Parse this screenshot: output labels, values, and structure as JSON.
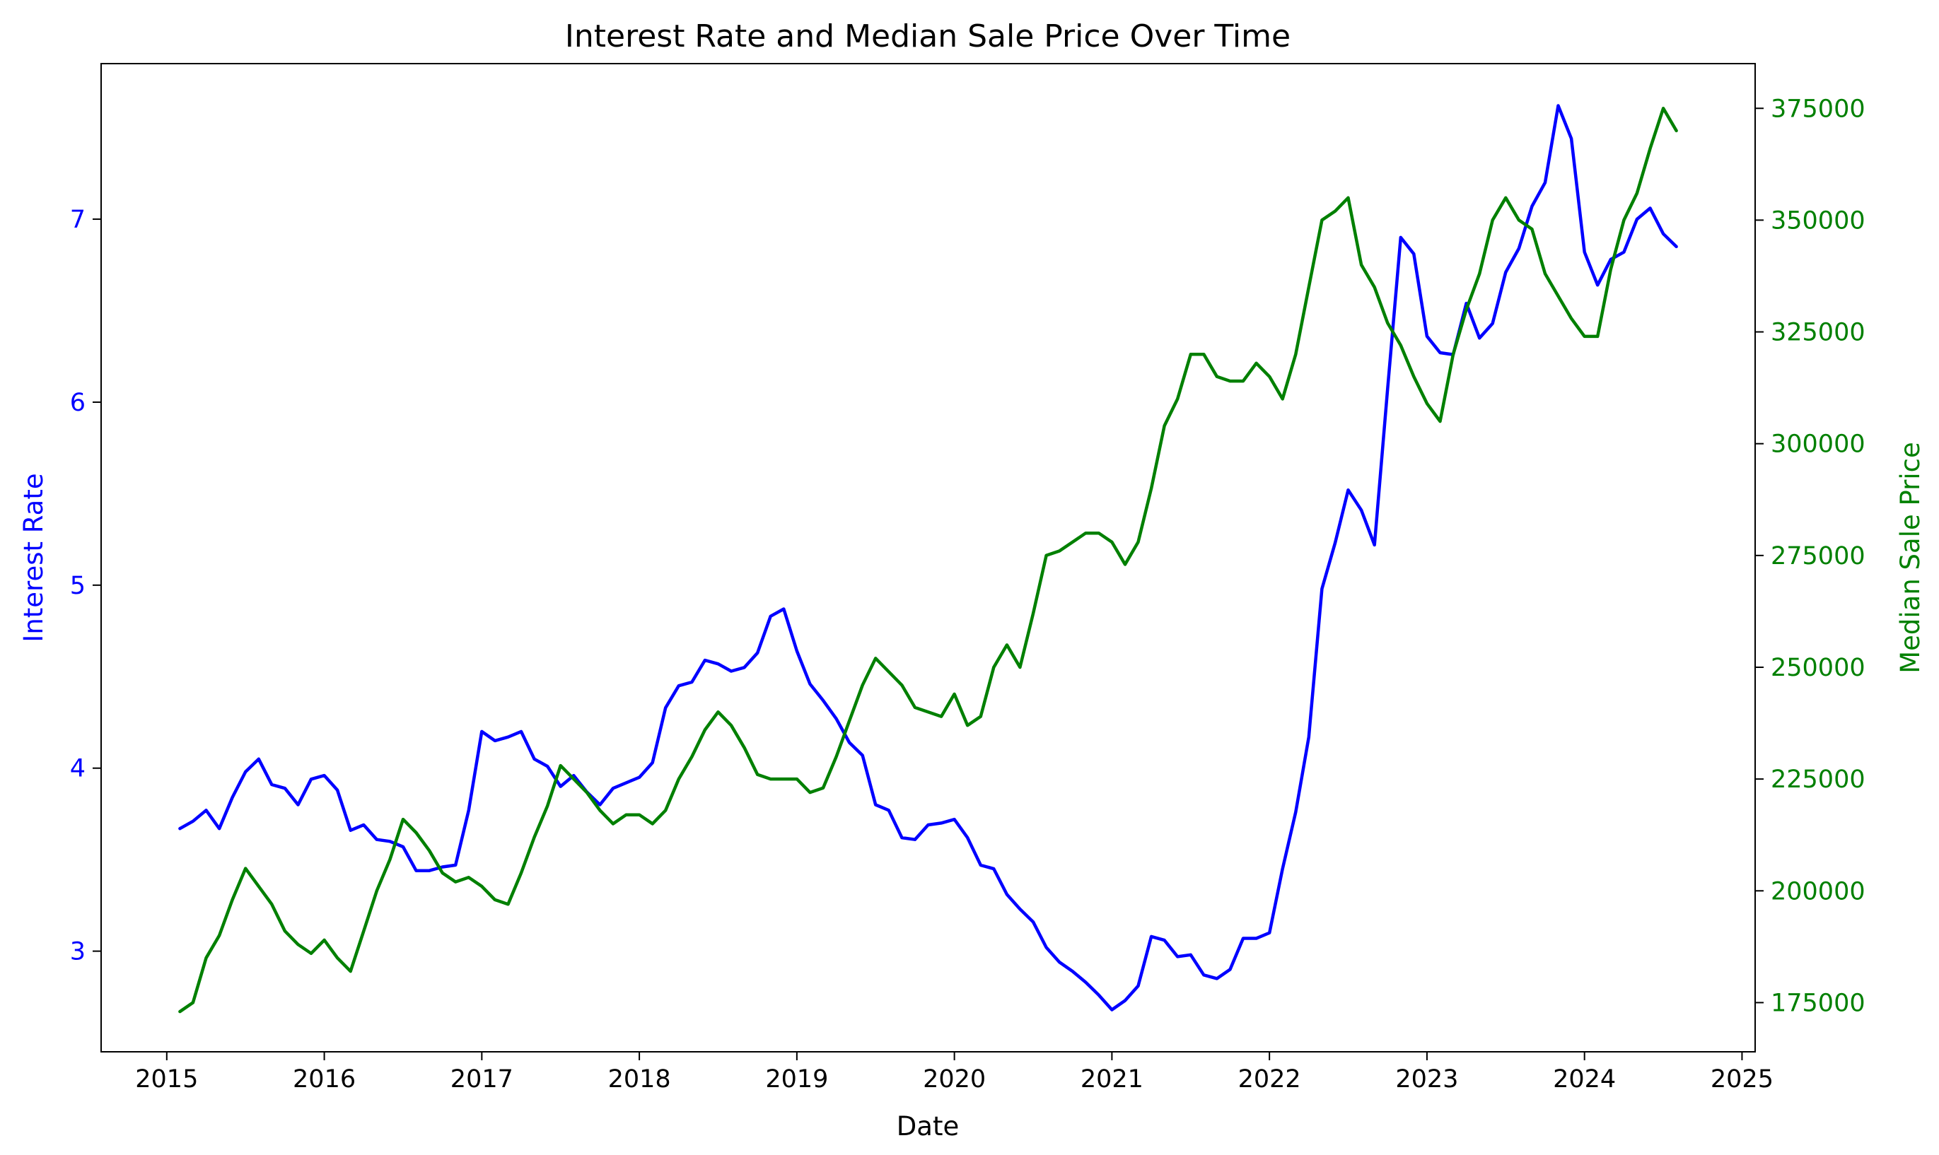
{
  "chart_data": {
    "type": "line",
    "title": "Interest Rate and Median Sale Price Over Time",
    "xlabel": "Date",
    "ylabel_left": "Interest Rate",
    "ylabel_right": "Median Sale Price",
    "x_ticks": [
      "2015",
      "2016",
      "2017",
      "2018",
      "2019",
      "2020",
      "2021",
      "2022",
      "2023",
      "2024",
      "2025"
    ],
    "y_left_ticks": [
      "3",
      "4",
      "5",
      "6",
      "7"
    ],
    "y_right_ticks": [
      "175000",
      "200000",
      "225000",
      "250000",
      "275000",
      "300000",
      "325000",
      "350000",
      "375000"
    ],
    "xlim": [
      "2014-08",
      "2025-02"
    ],
    "ylim_left": [
      2.45,
      7.85
    ],
    "ylim_right": [
      164000,
      385000
    ],
    "grid": false,
    "colors": {
      "left_series": "#0000ff",
      "right_series": "#008000"
    },
    "x": [
      "2015-02",
      "2015-03",
      "2015-04",
      "2015-05",
      "2015-06",
      "2015-07",
      "2015-08",
      "2015-09",
      "2015-10",
      "2015-11",
      "2015-12",
      "2016-01",
      "2016-02",
      "2016-03",
      "2016-04",
      "2016-05",
      "2016-06",
      "2016-07",
      "2016-08",
      "2016-09",
      "2016-10",
      "2016-11",
      "2016-12",
      "2017-01",
      "2017-02",
      "2017-03",
      "2017-04",
      "2017-05",
      "2017-06",
      "2017-07",
      "2017-08",
      "2017-09",
      "2017-10",
      "2017-11",
      "2017-12",
      "2018-01",
      "2018-02",
      "2018-03",
      "2018-04",
      "2018-05",
      "2018-06",
      "2018-07",
      "2018-08",
      "2018-09",
      "2018-10",
      "2018-11",
      "2018-12",
      "2019-01",
      "2019-02",
      "2019-03",
      "2019-04",
      "2019-05",
      "2019-06",
      "2019-07",
      "2019-08",
      "2019-09",
      "2019-10",
      "2019-11",
      "2019-12",
      "2020-01",
      "2020-02",
      "2020-03",
      "2020-04",
      "2020-05",
      "2020-06",
      "2020-07",
      "2020-08",
      "2020-09",
      "2020-10",
      "2020-11",
      "2020-12",
      "2021-01",
      "2021-02",
      "2021-03",
      "2021-04",
      "2021-05",
      "2021-06",
      "2021-07",
      "2021-08",
      "2021-09",
      "2021-10",
      "2021-11",
      "2021-12",
      "2022-01",
      "2022-02",
      "2022-03",
      "2022-04",
      "2022-05",
      "2022-06",
      "2022-07",
      "2022-08",
      "2022-09",
      "2022-10",
      "2022-11",
      "2022-12",
      "2023-01",
      "2023-02",
      "2023-03",
      "2023-04",
      "2023-05",
      "2023-06",
      "2023-07",
      "2023-08",
      "2023-09",
      "2023-10",
      "2023-11",
      "2023-12",
      "2024-01",
      "2024-02",
      "2024-03",
      "2024-04",
      "2024-05",
      "2024-06",
      "2024-07",
      "2024-08"
    ],
    "series": [
      {
        "axis": "left",
        "values": [
          3.67,
          3.71,
          3.77,
          3.67,
          3.84,
          3.98,
          4.05,
          3.91,
          3.89,
          3.8,
          3.94,
          3.96,
          3.88,
          3.66,
          3.69,
          3.61,
          3.6,
          3.57,
          3.44,
          3.44,
          3.46,
          3.47,
          3.77,
          4.2,
          4.15,
          4.17,
          4.2,
          4.05,
          4.01,
          3.9,
          3.96,
          3.87,
          3.8,
          3.89,
          3.92,
          3.95,
          4.03,
          4.33,
          4.45,
          4.47,
          4.59,
          4.57,
          4.53,
          4.55,
          4.63,
          4.83,
          4.87,
          4.64,
          4.46,
          4.37,
          4.27,
          4.14,
          4.07,
          3.8,
          3.77,
          3.62,
          3.61,
          3.69,
          3.7,
          3.72,
          3.62,
          3.47,
          3.45,
          3.31,
          3.23,
          3.16,
          3.02,
          2.94,
          2.89,
          2.83,
          2.76,
          2.68,
          2.73,
          2.81,
          3.08,
          3.06,
          2.97,
          2.98,
          2.87,
          2.85,
          2.9,
          3.07,
          3.07,
          3.1,
          3.45,
          3.76,
          4.17,
          4.98,
          5.23,
          5.52,
          5.41,
          5.22,
          6.07,
          6.9,
          6.81,
          6.36,
          6.27,
          6.26,
          6.54,
          6.35,
          6.43,
          6.71,
          6.84,
          7.07,
          7.2,
          7.62,
          7.44,
          6.82,
          6.64,
          6.78,
          6.82,
          7.0,
          7.06,
          6.92,
          6.85
        ]
      },
      {
        "axis": "right",
        "values": [
          173000,
          175000,
          185000,
          190000,
          198000,
          205000,
          201000,
          197000,
          191000,
          188000,
          186000,
          189000,
          185000,
          182000,
          191000,
          200000,
          207000,
          216000,
          213000,
          209000,
          204000,
          202000,
          203000,
          201000,
          198000,
          197000,
          204000,
          212000,
          219000,
          228000,
          225000,
          222000,
          218000,
          215000,
          217000,
          217000,
          215000,
          218000,
          225000,
          230000,
          236000,
          240000,
          237000,
          232000,
          226000,
          225000,
          225000,
          225000,
          222000,
          223000,
          230000,
          238000,
          246000,
          252000,
          249000,
          246000,
          241000,
          240000,
          239000,
          244000,
          237000,
          239000,
          250000,
          255000,
          250000,
          262000,
          275000,
          276000,
          278000,
          280000,
          280000,
          278000,
          273000,
          278000,
          290000,
          304000,
          310000,
          320000,
          320000,
          315000,
          314000,
          314000,
          318000,
          315000,
          310000,
          320000,
          335000,
          350000,
          352000,
          355000,
          340000,
          335000,
          327000,
          322000,
          315000,
          309000,
          305000,
          320000,
          330000,
          338000,
          350000,
          355000,
          350000,
          348000,
          338000,
          333000,
          328000,
          324000,
          324000,
          339000,
          350000,
          356000,
          366000,
          375000,
          370000
        ]
      }
    ]
  }
}
